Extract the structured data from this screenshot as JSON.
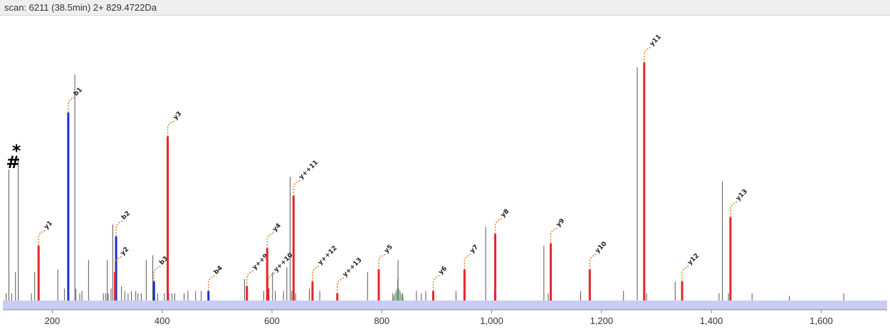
{
  "header": {
    "scan_label": "scan: 6211 (38.5min) 2+ 829.4722Da"
  },
  "colors": {
    "y_ion": "#e8242b",
    "b_ion": "#1c2fd8",
    "unmatched": "#555555",
    "precursor": "#5c8a5c",
    "label_line": "#e8761a",
    "band": "#c9cdf1",
    "marker": "#000000"
  },
  "chart_data": {
    "type": "bar",
    "title": "",
    "xlabel": "",
    "ylabel": "",
    "xlim": [
      110,
      1720
    ],
    "ylim": [
      0,
      1.0
    ],
    "xticks": [
      200,
      400,
      600,
      800,
      1000,
      1200,
      1400,
      1600
    ],
    "xtick_labels": [
      "200",
      "400",
      "600",
      "800",
      "1,000",
      "1,200",
      "1,400",
      "1,600"
    ],
    "grid": false,
    "markers": [
      {
        "text": "#",
        "mz": 126
      },
      {
        "text": "*",
        "mz": 137
      }
    ],
    "matched_peaks": [
      {
        "ion": "y1",
        "type": "y",
        "mz": 175.1,
        "intensity": 0.23
      },
      {
        "ion": "b1",
        "type": "b",
        "mz": 229.1,
        "intensity": 0.79
      },
      {
        "ion": "b2",
        "type": "b",
        "mz": 316.2,
        "intensity": 0.27
      },
      {
        "ion": "y2",
        "type": "y",
        "mz": 314.2,
        "intensity": 0.12
      },
      {
        "ion": "b3",
        "type": "b",
        "mz": 385.2,
        "intensity": 0.08
      },
      {
        "ion": "y3",
        "type": "y",
        "mz": 410.2,
        "intensity": 0.69
      },
      {
        "ion": "b4",
        "type": "b",
        "mz": 484.3,
        "intensity": 0.04
      },
      {
        "ion": "y++9",
        "type": "y",
        "mz": 554.3,
        "intensity": 0.06
      },
      {
        "ion": "y4",
        "type": "y",
        "mz": 591.3,
        "intensity": 0.22
      },
      {
        "ion": "y++10",
        "type": "y",
        "mz": 593.3,
        "intensity": 0.05
      },
      {
        "ion": "y++11",
        "type": "y",
        "mz": 639.3,
        "intensity": 0.44
      },
      {
        "ion": "y++12",
        "type": "y",
        "mz": 673.8,
        "intensity": 0.08
      },
      {
        "ion": "y++13",
        "type": "y",
        "mz": 718.9,
        "intensity": 0.03
      },
      {
        "ion": "y5",
        "type": "y",
        "mz": 794.4,
        "intensity": 0.13
      },
      {
        "ion": "y6",
        "type": "y",
        "mz": 893.5,
        "intensity": 0.04
      },
      {
        "ion": "y7",
        "type": "y",
        "mz": 950.5,
        "intensity": 0.13
      },
      {
        "ion": "y8",
        "type": "y",
        "mz": 1006.5,
        "intensity": 0.28
      },
      {
        "ion": "y9",
        "type": "y",
        "mz": 1107.6,
        "intensity": 0.24
      },
      {
        "ion": "y10",
        "type": "y",
        "mz": 1178.6,
        "intensity": 0.13
      },
      {
        "ion": "y11",
        "type": "y",
        "mz": 1277.7,
        "intensity": 1.0
      },
      {
        "ion": "y12",
        "type": "y",
        "mz": 1346.7,
        "intensity": 0.08
      },
      {
        "ion": "y13",
        "type": "y",
        "mz": 1434.7,
        "intensity": 0.35
      }
    ],
    "unmatched_peaks": [
      [
        116,
        0.03
      ],
      [
        121,
        0.55
      ],
      [
        126,
        0.03
      ],
      [
        133,
        0.12
      ],
      [
        138,
        0.6
      ],
      [
        162,
        0.03
      ],
      [
        168,
        0.12
      ],
      [
        210,
        0.13
      ],
      [
        222,
        0.05
      ],
      [
        241,
        0.95
      ],
      [
        243,
        0.05
      ],
      [
        250,
        0.03
      ],
      [
        254,
        0.04
      ],
      [
        266,
        0.17
      ],
      [
        293,
        0.03
      ],
      [
        297,
        0.03
      ],
      [
        300,
        0.17
      ],
      [
        302,
        0.03
      ],
      [
        307,
        0.05
      ],
      [
        310,
        0.32
      ],
      [
        326,
        0.06
      ],
      [
        332,
        0.04
      ],
      [
        338,
        0.03
      ],
      [
        344,
        0.04
      ],
      [
        352,
        0.04
      ],
      [
        356,
        0.03
      ],
      [
        362,
        0.03
      ],
      [
        371,
        0.17
      ],
      [
        383,
        0.19
      ],
      [
        392,
        0.03
      ],
      [
        404,
        0.03
      ],
      [
        412,
        0.03
      ],
      [
        418,
        0.03
      ],
      [
        423,
        0.03
      ],
      [
        440,
        0.03
      ],
      [
        447,
        0.04
      ],
      [
        461,
        0.04
      ],
      [
        471,
        0.04
      ],
      [
        550,
        0.09
      ],
      [
        585,
        0.04
      ],
      [
        601,
        0.12
      ],
      [
        606,
        0.04
      ],
      [
        621,
        0.04
      ],
      [
        627,
        0.14
      ],
      [
        633,
        0.52
      ],
      [
        636,
        0.04
      ],
      [
        643,
        0.03
      ],
      [
        668,
        0.05
      ],
      [
        687,
        0.04
      ],
      [
        774,
        0.12
      ],
      [
        829.5,
        0.17
      ],
      [
        829,
        0.09
      ],
      [
        820,
        0.03
      ],
      [
        838,
        0.03
      ],
      [
        863,
        0.04
      ],
      [
        872,
        0.03
      ],
      [
        880,
        0.04
      ],
      [
        935,
        0.04
      ],
      [
        989,
        0.31
      ],
      [
        1005,
        0.04
      ],
      [
        1095,
        0.23
      ],
      [
        1103,
        0.03
      ],
      [
        1162,
        0.04
      ],
      [
        1240,
        0.04
      ],
      [
        1265,
        0.98
      ],
      [
        1282,
        0.03
      ],
      [
        1334,
        0.08
      ],
      [
        1414,
        0.03
      ],
      [
        1420,
        0.5
      ],
      [
        1431,
        0.03
      ],
      [
        1474,
        0.03
      ],
      [
        1542,
        0.02
      ],
      [
        1641,
        0.03
      ]
    ],
    "precursor": {
      "mz": 829.47,
      "intensity": 0.06
    }
  }
}
